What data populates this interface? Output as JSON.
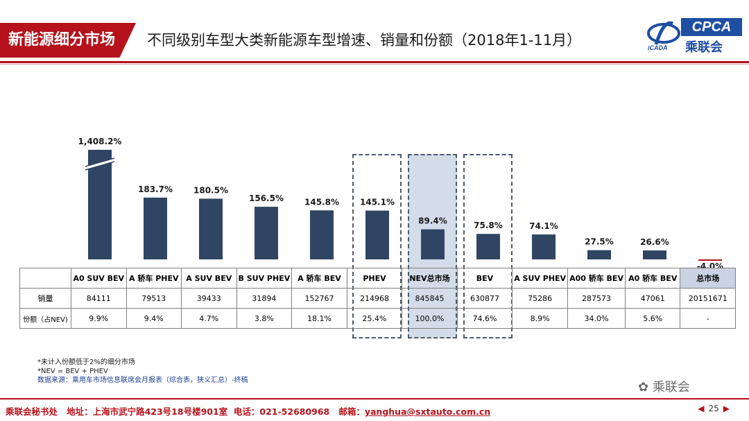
{
  "header": {
    "tag": "新能源细分市场",
    "title": "不同级别车型大类新能源车型增速、销量和份额（2018年1-11月）",
    "logo_text": "CPCA",
    "logo_cn": "乘联会",
    "accent_color": "#b5121b",
    "brand_color": "#1f4fa3"
  },
  "chart_data": {
    "type": "bar",
    "categories": [
      "A0 SUV BEV",
      "A 轿车 PHEV",
      "A SUV BEV",
      "B SUV PHEV",
      "A 轿车 BEV",
      "PHEV",
      "NEV总市场",
      "BEV",
      "A SUV PHEV",
      "A00 轿车 BEV",
      "A0 轿车 BEV",
      "总市场"
    ],
    "values": [
      1408.2,
      183.7,
      180.5,
      156.5,
      145.8,
      145.1,
      89.4,
      75.8,
      74.1,
      27.5,
      26.6,
      -4.0
    ],
    "labels": [
      "1,408.2%",
      "183.7%",
      "180.5%",
      "156.5%",
      "145.8%",
      "145.1%",
      "89.4%",
      "75.8%",
      "74.1%",
      "27.5%",
      "26.6%",
      "-4.0%"
    ],
    "axis_break_on": "A0 SUV BEV",
    "bar_color": "#2f4563",
    "negative_color": "#b5121b"
  },
  "table": {
    "row_labels": [
      "销量",
      "份额（占NEV)"
    ],
    "sales": [
      "84111",
      "79513",
      "39433",
      "31894",
      "152767",
      "214968",
      "845845",
      "630877",
      "75286",
      "287573",
      "47061",
      "20151671"
    ],
    "share": [
      "9.9%",
      "9.4%",
      "4.7%",
      "3.8%",
      "18.1%",
      "25.4%",
      "100.0%",
      "74.6%",
      "8.9%",
      "34.0%",
      "5.6%",
      "-"
    ]
  },
  "notes": {
    "line1": "*未计入份额低于2%的细分市场",
    "line2": "*NEV = BEV + PHEV",
    "line3": "数据来源：乘用车市场信息联席会月报表（综合表，狭义汇总）-终稿"
  },
  "watermark": "乘联会",
  "footer": {
    "org": "乘联会秘书处",
    "address": "地址：上海市武宁路423号18号楼901室",
    "phone": "电话：021-52680968",
    "email_label": "邮箱：",
    "email": "yanghua@sxtauto.com.cn",
    "page": "25"
  }
}
